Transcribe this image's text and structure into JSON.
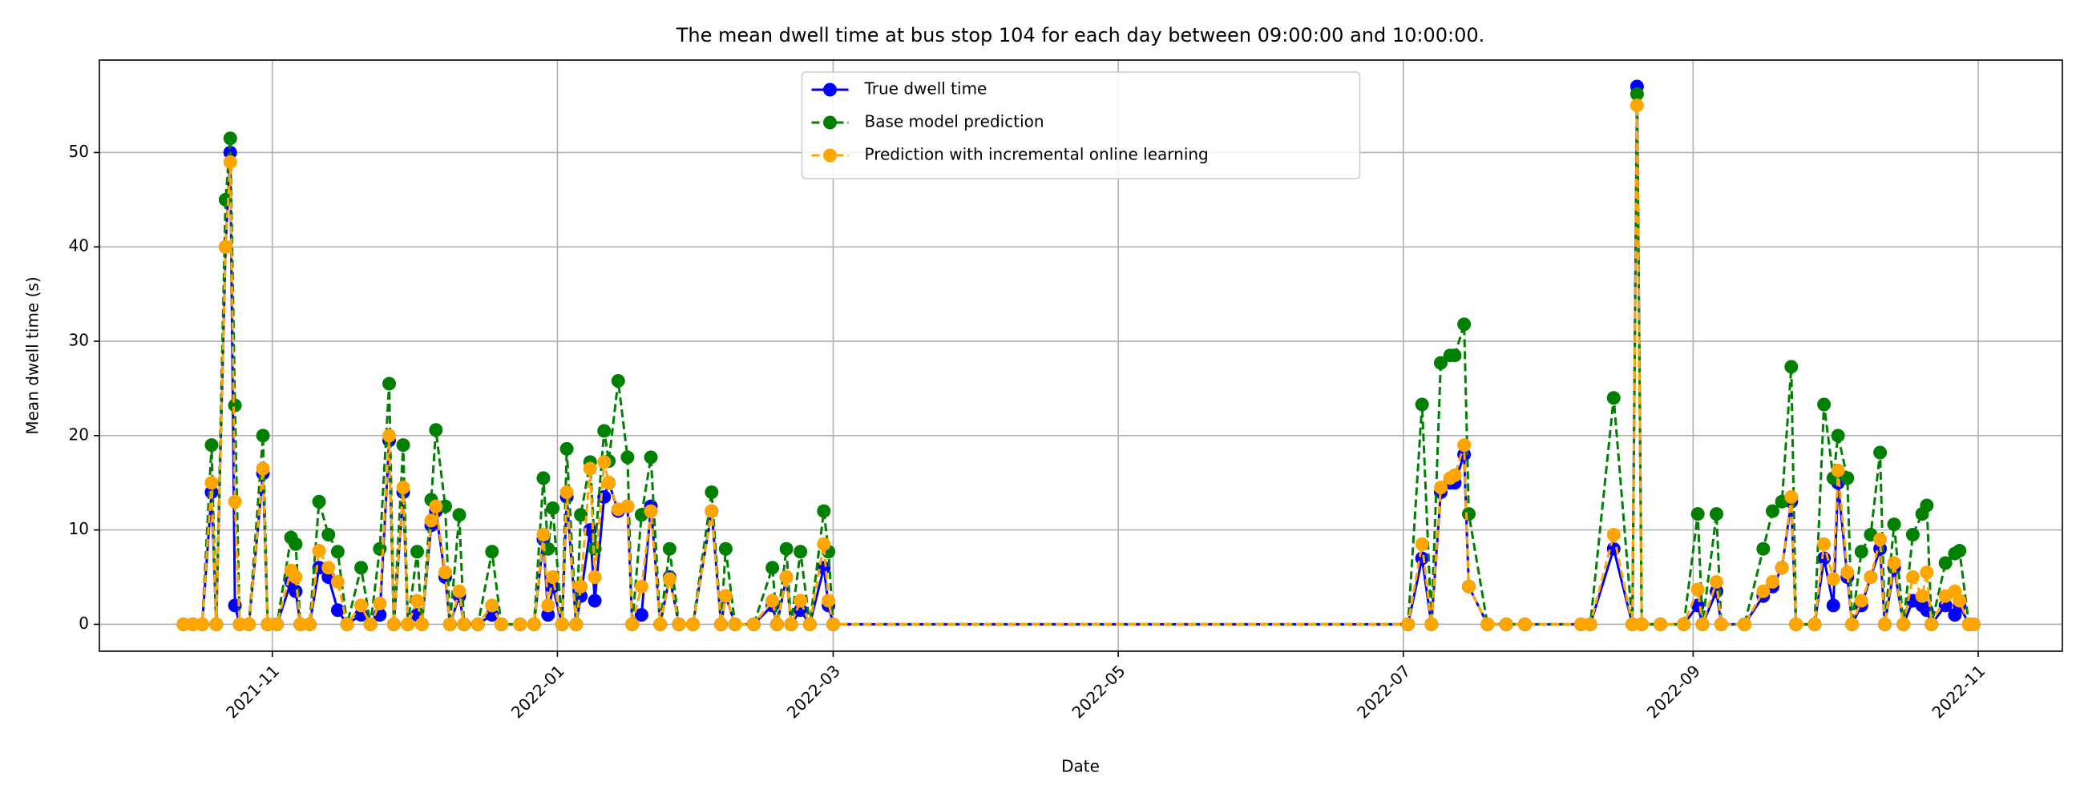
{
  "chart_data": {
    "type": "line",
    "title": "The mean dwell time at bus stop 104 for each day between 09:00:00 and 10:00:00.",
    "xlabel": "Date",
    "ylabel": "Mean dwell time (s)",
    "x": [
      "2021-10-13",
      "2021-10-15",
      "2021-10-17",
      "2021-10-19",
      "2021-10-20",
      "2021-10-22",
      "2021-10-23",
      "2021-10-24",
      "2021-10-25",
      "2021-10-27",
      "2021-10-30",
      "2021-10-31",
      "2021-11-02",
      "2021-11-05",
      "2021-11-06",
      "2021-11-07",
      "2021-11-09",
      "2021-11-11",
      "2021-11-13",
      "2021-11-15",
      "2021-11-17",
      "2021-11-20",
      "2021-11-22",
      "2021-11-24",
      "2021-11-26",
      "2021-11-27",
      "2021-11-29",
      "2021-11-30",
      "2021-12-02",
      "2021-12-03",
      "2021-12-05",
      "2021-12-06",
      "2021-12-08",
      "2021-12-09",
      "2021-12-11",
      "2021-12-12",
      "2021-12-15",
      "2021-12-18",
      "2021-12-20",
      "2021-12-24",
      "2021-12-27",
      "2021-12-29",
      "2021-12-30",
      "2021-12-31",
      "2022-01-02",
      "2022-01-03",
      "2022-01-05",
      "2022-01-06",
      "2022-01-08",
      "2022-01-09",
      "2022-01-11",
      "2022-01-12",
      "2022-01-14",
      "2022-01-16",
      "2022-01-17",
      "2022-01-19",
      "2022-01-21",
      "2022-01-23",
      "2022-01-25",
      "2022-01-27",
      "2022-01-30",
      "2022-02-03",
      "2022-02-05",
      "2022-02-06",
      "2022-02-08",
      "2022-02-12",
      "2022-02-16",
      "2022-02-17",
      "2022-02-19",
      "2022-02-20",
      "2022-02-22",
      "2022-02-24",
      "2022-02-27",
      "2022-02-28",
      "2022-03-01",
      "2022-07-02",
      "2022-07-05",
      "2022-07-07",
      "2022-07-09",
      "2022-07-11",
      "2022-07-12",
      "2022-07-14",
      "2022-07-15",
      "2022-07-19",
      "2022-07-23",
      "2022-07-27",
      "2022-08-08",
      "2022-08-10",
      "2022-08-15",
      "2022-08-19",
      "2022-08-20",
      "2022-08-21",
      "2022-08-25",
      "2022-08-30",
      "2022-09-02",
      "2022-09-03",
      "2022-09-06",
      "2022-09-07",
      "2022-09-12",
      "2022-09-16",
      "2022-09-18",
      "2022-09-20",
      "2022-09-22",
      "2022-09-23",
      "2022-09-27",
      "2022-09-29",
      "2022-10-01",
      "2022-10-02",
      "2022-10-04",
      "2022-10-05",
      "2022-10-07",
      "2022-10-09",
      "2022-10-11",
      "2022-10-12",
      "2022-10-14",
      "2022-10-16",
      "2022-10-18",
      "2022-10-20",
      "2022-10-21",
      "2022-10-22",
      "2022-10-25",
      "2022-10-27",
      "2022-10-28",
      "2022-10-30",
      "2022-10-31"
    ],
    "series": [
      {
        "name": "True dwell time",
        "color": "#0000ff",
        "linestyle": "solid",
        "values": [
          0,
          0,
          0,
          14,
          0,
          40,
          50,
          2,
          0,
          0,
          16,
          0,
          0,
          4.5,
          3.5,
          0,
          0,
          6,
          5,
          1.5,
          0,
          1,
          0,
          1,
          19.5,
          0,
          14,
          0,
          1,
          0,
          10.5,
          12,
          5,
          0,
          3,
          0,
          0,
          1,
          0,
          0,
          0,
          9,
          1,
          4,
          0,
          13.5,
          0,
          3,
          10,
          2.5,
          13.5,
          15,
          12,
          12.5,
          0,
          1,
          12.5,
          0,
          5,
          0,
          0,
          12,
          0,
          3,
          0,
          0,
          2,
          0,
          5,
          0,
          1.5,
          0,
          6,
          2,
          0,
          0,
          7,
          0,
          14,
          15,
          15,
          18,
          4,
          0,
          0,
          0,
          0,
          0,
          8,
          0,
          57,
          0,
          0,
          0,
          2,
          0,
          3.5,
          0,
          0,
          3,
          4,
          6,
          13,
          0,
          0,
          7,
          2,
          15,
          5,
          0,
          2,
          5,
          8,
          0,
          6,
          0,
          2.5,
          2,
          1.5,
          0,
          2,
          1,
          2,
          0,
          0
        ]
      },
      {
        "name": "Base model prediction",
        "color": "#008000",
        "linestyle": "dashed",
        "values": [
          0,
          0,
          0,
          19,
          0,
          45,
          51.5,
          23.2,
          0,
          0,
          20,
          0,
          0,
          9.2,
          8.5,
          0,
          0,
          13,
          9.5,
          7.7,
          0,
          6,
          0,
          8,
          25.5,
          0,
          19,
          0,
          7.7,
          0,
          13.2,
          20.6,
          12.5,
          0,
          11.6,
          0,
          0,
          7.7,
          0,
          0,
          0,
          15.5,
          8,
          12.3,
          0,
          18.6,
          0,
          11.6,
          17.2,
          8,
          20.5,
          17.3,
          25.8,
          17.7,
          0,
          11.6,
          17.7,
          0,
          8,
          0,
          0,
          14,
          0,
          8,
          0,
          0,
          6,
          0,
          8,
          0,
          7.7,
          0,
          12,
          7.7,
          0,
          0,
          23.3,
          0,
          27.7,
          28.5,
          28.5,
          31.8,
          11.7,
          0,
          0,
          0,
          0,
          0,
          24,
          0,
          56.2,
          0,
          0,
          0,
          11.7,
          0,
          11.7,
          0,
          0,
          8,
          12,
          13,
          27.3,
          0,
          0,
          23.3,
          15.5,
          20,
          15.5,
          0,
          7.7,
          9.5,
          18.2,
          0,
          10.6,
          0,
          9.5,
          11.7,
          12.6,
          0,
          6.5,
          7.5,
          7.8,
          0,
          0
        ]
      },
      {
        "name": "Prediction with incremental online learning",
        "color": "#ffa500",
        "linestyle": "dashed",
        "values": [
          0,
          0,
          0,
          15,
          0,
          40,
          49,
          13,
          0,
          0,
          16.5,
          0,
          0,
          5.7,
          5,
          0,
          0,
          7.8,
          6,
          4.5,
          0,
          2,
          0,
          2.2,
          20,
          0,
          14.5,
          0,
          2.5,
          0,
          11,
          12.5,
          5.5,
          0,
          3.5,
          0,
          0,
          2,
          0,
          0,
          0,
          9.5,
          2,
          5,
          0,
          14,
          0,
          4,
          16.5,
          5,
          17.2,
          15,
          12.2,
          12.5,
          0,
          4,
          12,
          0,
          4.8,
          0,
          0,
          12,
          0,
          3,
          0,
          0,
          2.5,
          0,
          5,
          0,
          2.5,
          0,
          8.5,
          2.5,
          0,
          0,
          8.5,
          0,
          14.5,
          15.5,
          15.8,
          19,
          4,
          0,
          0,
          0,
          0,
          0,
          9.5,
          0,
          55,
          0,
          0,
          0,
          3.7,
          0,
          4.5,
          0,
          0,
          3.5,
          4.5,
          6,
          13.5,
          0,
          0,
          8.5,
          4.8,
          16.3,
          5.5,
          0,
          2.5,
          5,
          9,
          0,
          6.5,
          0,
          5,
          3,
          5.5,
          0,
          3,
          3.5,
          2.5,
          0,
          0
        ]
      }
    ],
    "xlim": [
      "2021-09-25",
      "2022-11-19"
    ],
    "xticks": [
      "2021-11",
      "2022-01",
      "2022-03",
      "2022-05",
      "2022-07",
      "2022-09",
      "2022-11"
    ],
    "ylim": [
      -2.85,
      59.8
    ],
    "yticks": [
      0,
      10,
      20,
      30,
      40,
      50
    ],
    "grid": true,
    "legend": "upper center"
  }
}
